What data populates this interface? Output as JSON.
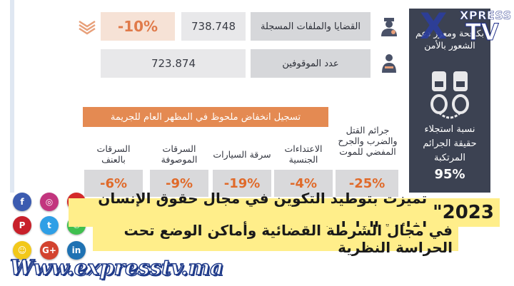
{
  "rows": [
    {
      "label": "القضايا والملفات المسجلة",
      "value": "738.748",
      "change": "-10%"
    },
    {
      "label": "عدد الموقوفين",
      "value": "723.874"
    }
  ],
  "banner": "تسجيل انخفاض ملحوظ في المظهر العام للجريمة",
  "crimes": [
    {
      "label": "جرائم القتل والضرب والجرح المفضي للموت",
      "pct": "-25%"
    },
    {
      "label": "الاعتداءات الجنسية",
      "pct": "-4%"
    },
    {
      "label": "سرقة السيارات",
      "pct": "-19%"
    },
    {
      "label": "السرقات الموصوفة",
      "pct": "-9%"
    },
    {
      "label": "السرقات بالعنف",
      "pct": "-6%"
    }
  ],
  "side_panel": {
    "top_text": "بكافحة ومعزز دعم الشعور بالأمن",
    "caption": "نسبة استجلاء حقيقة الجرائم المرتكبة",
    "value": "95%"
  },
  "logo": {
    "line1": "XPRESS",
    "line2": "TV"
  },
  "ticker": {
    "line1_year": "\"2023",
    "line1_rest": "تميزت بتوطيد التكوين في مجال حقوق الإنسان لفائدة العاملين",
    "line2": "في مجال الشرطة القضائية وأماكن الوضع تحت الحراسة النظرية"
  },
  "website": "Www.expresstv.ma",
  "social": [
    {
      "name": "facebook",
      "glyph": "f",
      "color": "#3b5bb0"
    },
    {
      "name": "instagram",
      "glyph": "◎",
      "color": "#c2357e"
    },
    {
      "name": "youtube",
      "glyph": "▶",
      "color": "#d42a2a"
    },
    {
      "name": "pinterest",
      "glyph": "P",
      "color": "#c8202a"
    },
    {
      "name": "twitter",
      "glyph": "t",
      "color": "#2f9fe6"
    },
    {
      "name": "whatsapp",
      "glyph": "✆",
      "color": "#3fbf4f"
    },
    {
      "name": "snapchat",
      "glyph": "☺",
      "color": "#f2c81a"
    },
    {
      "name": "google-plus",
      "glyph": "G+",
      "color": "#d3432f"
    },
    {
      "name": "linkedin",
      "glyph": "in",
      "color": "#1f72b3"
    }
  ]
}
